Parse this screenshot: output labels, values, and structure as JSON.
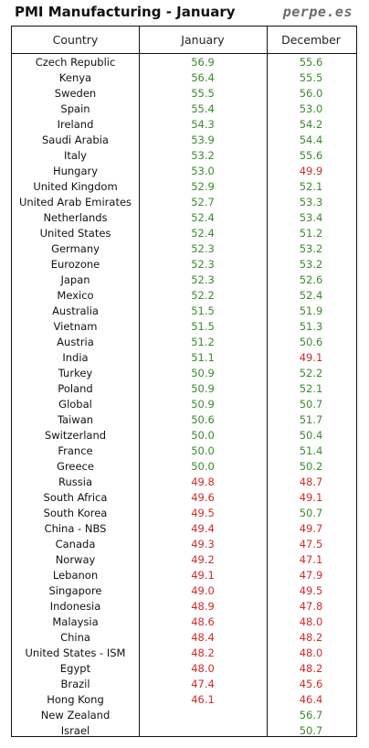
{
  "header": {
    "title": "PMI Manufacturing - January",
    "source": "perpe.es"
  },
  "columns": {
    "country": "Country",
    "january": "January",
    "december": "December"
  },
  "colors": {
    "above_50": "#3d8a2f",
    "below_50": "#d22b2b"
  },
  "rows": [
    {
      "country": "Czech Republic",
      "january": "56.9",
      "december": "55.6"
    },
    {
      "country": "Kenya",
      "january": "56.4",
      "december": "55.5"
    },
    {
      "country": "Sweden",
      "january": "55.5",
      "december": "56.0"
    },
    {
      "country": "Spain",
      "january": "55.4",
      "december": "53.0"
    },
    {
      "country": "Ireland",
      "january": "54.3",
      "december": "54.2"
    },
    {
      "country": "Saudi Arabia",
      "january": "53.9",
      "december": "54.4"
    },
    {
      "country": "Italy",
      "january": "53.2",
      "december": "55.6"
    },
    {
      "country": "Hungary",
      "january": "53.0",
      "december": "49.9"
    },
    {
      "country": "United Kingdom",
      "january": "52.9",
      "december": "52.1"
    },
    {
      "country": "United Arab Emirates",
      "january": "52.7",
      "december": "53.3"
    },
    {
      "country": "Netherlands",
      "january": "52.4",
      "december": "53.4"
    },
    {
      "country": "United States",
      "january": "52.4",
      "december": "51.2"
    },
    {
      "country": "Germany",
      "january": "52.3",
      "december": "53.2"
    },
    {
      "country": "Eurozone",
      "january": "52.3",
      "december": "53.2"
    },
    {
      "country": "Japan",
      "january": "52.3",
      "december": "52.6"
    },
    {
      "country": "Mexico",
      "january": "52.2",
      "december": "52.4"
    },
    {
      "country": "Australia",
      "january": "51.5",
      "december": "51.9"
    },
    {
      "country": "Vietnam",
      "january": "51.5",
      "december": "51.3"
    },
    {
      "country": "Austria",
      "january": "51.2",
      "december": "50.6"
    },
    {
      "country": "India",
      "january": "51.1",
      "december": "49.1"
    },
    {
      "country": "Turkey",
      "january": "50.9",
      "december": "52.2"
    },
    {
      "country": "Poland",
      "january": "50.9",
      "december": "52.1"
    },
    {
      "country": "Global",
      "january": "50.9",
      "december": "50.7"
    },
    {
      "country": "Taiwan",
      "january": "50.6",
      "december": "51.7"
    },
    {
      "country": "Switzerland",
      "january": "50.0",
      "december": "50.4"
    },
    {
      "country": "France",
      "january": "50.0",
      "december": "51.4"
    },
    {
      "country": "Greece",
      "january": "50.0",
      "december": "50.2"
    },
    {
      "country": "Russia",
      "january": "49.8",
      "december": "48.7"
    },
    {
      "country": "South Africa",
      "january": "49.6",
      "december": "49.1"
    },
    {
      "country": "South Korea",
      "january": "49.5",
      "december": "50.7"
    },
    {
      "country": "China - NBS",
      "january": "49.4",
      "december": "49.7"
    },
    {
      "country": "Canada",
      "january": "49.3",
      "december": "47.5"
    },
    {
      "country": "Norway",
      "january": "49.2",
      "december": "47.1"
    },
    {
      "country": "Lebanon",
      "january": "49.1",
      "december": "47.9"
    },
    {
      "country": "Singapore",
      "january": "49.0",
      "december": "49.5"
    },
    {
      "country": "Indonesia",
      "january": "48.9",
      "december": "47.8"
    },
    {
      "country": "Malaysia",
      "january": "48.6",
      "december": "48.0"
    },
    {
      "country": "China",
      "january": "48.4",
      "december": "48.2"
    },
    {
      "country": "United States - ISM",
      "january": "48.2",
      "december": "48.0"
    },
    {
      "country": "Egypt",
      "january": "48.0",
      "december": "48.2"
    },
    {
      "country": "Brazil",
      "january": "47.4",
      "december": "45.6"
    },
    {
      "country": "Hong Kong",
      "january": "46.1",
      "december": "46.4"
    },
    {
      "country": "New Zealand",
      "january": "",
      "december": "56.7"
    },
    {
      "country": "Israel",
      "january": "",
      "december": "50.7"
    }
  ]
}
